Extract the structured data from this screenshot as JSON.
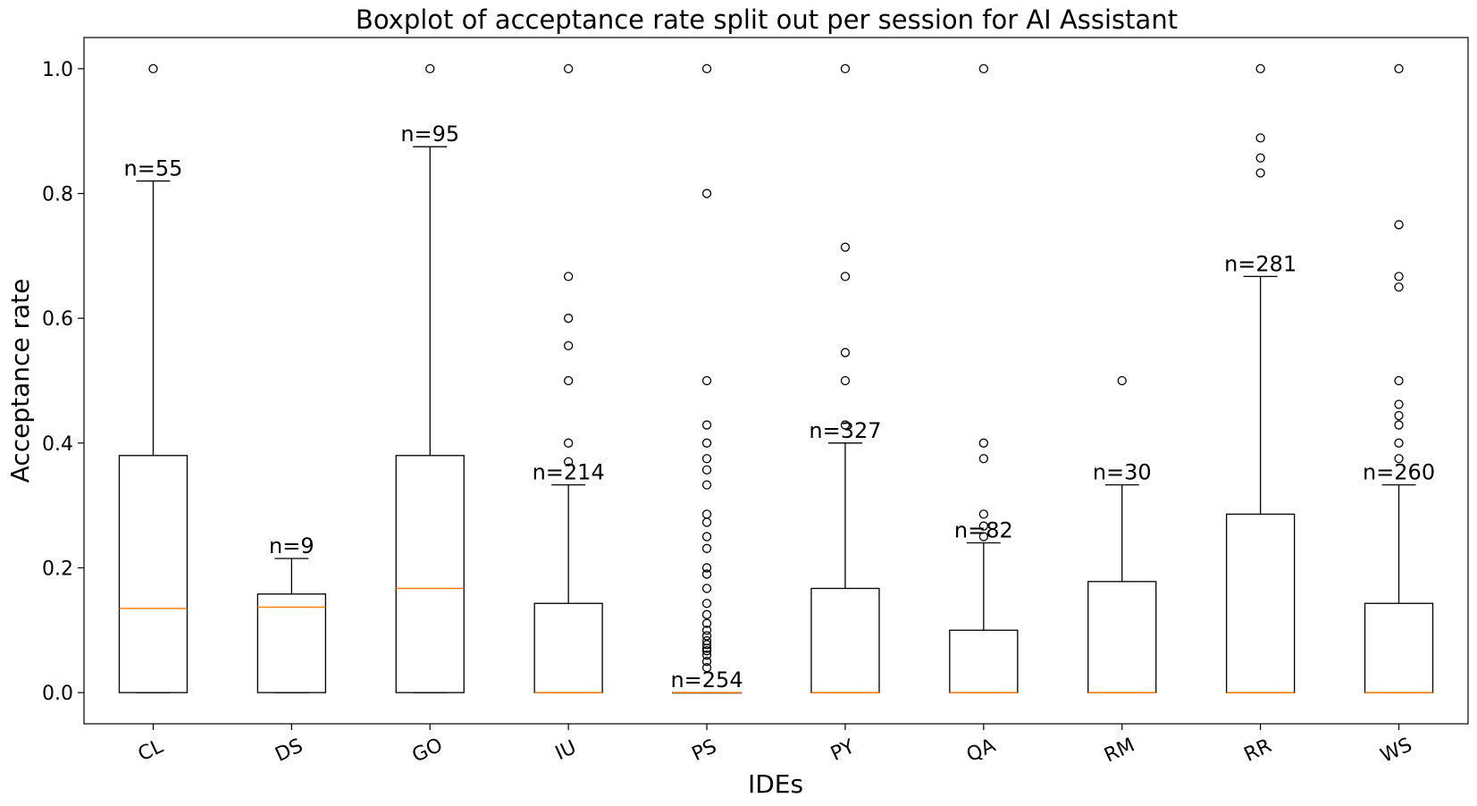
{
  "chart_data": {
    "type": "box",
    "title": "Boxplot of acceptance rate split out per session for AI Assistant",
    "xlabel": "IDEs",
    "ylabel": "Acceptance rate",
    "ylim": [
      -0.05,
      1.05
    ],
    "yticks": [
      0.0,
      0.2,
      0.4,
      0.6,
      0.8,
      1.0
    ],
    "ytick_labels": [
      "0.0",
      "0.2",
      "0.4",
      "0.6",
      "0.8",
      "1.0"
    ],
    "grid": false,
    "colors": {
      "box": "#000000",
      "median": "#ff7f0e"
    },
    "boxes": [
      {
        "category": "CL",
        "n_label": "n=55",
        "min": 0.0,
        "q1": 0.0,
        "median": 0.135,
        "q3": 0.38,
        "max": 0.82,
        "fliers": [
          1.0
        ]
      },
      {
        "category": "DS",
        "n_label": "n=9",
        "min": 0.0,
        "q1": 0.0,
        "median": 0.137,
        "q3": 0.158,
        "max": 0.215,
        "fliers": []
      },
      {
        "category": "GO",
        "n_label": "n=95",
        "min": 0.0,
        "q1": 0.0,
        "median": 0.167,
        "q3": 0.38,
        "max": 0.875,
        "fliers": [
          1.0
        ]
      },
      {
        "category": "IU",
        "n_label": "n=214",
        "min": 0.0,
        "q1": 0.0,
        "median": 0.0,
        "q3": 0.143,
        "max": 0.333,
        "fliers": [
          0.37,
          0.4,
          0.5,
          0.556,
          0.6,
          0.667,
          1.0
        ]
      },
      {
        "category": "PS",
        "n_label": "n=254",
        "min": 0.0,
        "q1": 0.0,
        "median": 0.0,
        "q3": 0.0,
        "max": 0.0,
        "fliers": [
          0.04,
          0.05,
          0.06,
          0.067,
          0.071,
          0.077,
          0.083,
          0.091,
          0.1,
          0.111,
          0.125,
          0.143,
          0.167,
          0.19,
          0.2,
          0.231,
          0.25,
          0.273,
          0.286,
          0.333,
          0.357,
          0.375,
          0.4,
          0.429,
          0.5,
          0.8,
          1.0
        ]
      },
      {
        "category": "PY",
        "n_label": "n=327",
        "min": 0.0,
        "q1": 0.0,
        "median": 0.0,
        "q3": 0.167,
        "max": 0.4,
        "fliers": [
          0.429,
          0.5,
          0.545,
          0.667,
          0.714,
          1.0
        ]
      },
      {
        "category": "QA",
        "n_label": "n=82",
        "min": 0.0,
        "q1": 0.0,
        "median": 0.0,
        "q3": 0.1,
        "max": 0.24,
        "fliers": [
          0.25,
          0.267,
          0.286,
          0.375,
          0.4,
          1.0
        ]
      },
      {
        "category": "RM",
        "n_label": "n=30",
        "min": 0.0,
        "q1": 0.0,
        "median": 0.0,
        "q3": 0.178,
        "max": 0.333,
        "fliers": [
          0.5
        ]
      },
      {
        "category": "RR",
        "n_label": "n=281",
        "min": 0.0,
        "q1": 0.0,
        "median": 0.0,
        "q3": 0.286,
        "max": 0.667,
        "fliers": [
          0.833,
          0.857,
          0.889,
          1.0
        ]
      },
      {
        "category": "WS",
        "n_label": "n=260",
        "min": 0.0,
        "q1": 0.0,
        "median": 0.0,
        "q3": 0.143,
        "max": 0.333,
        "fliers": [
          0.375,
          0.4,
          0.429,
          0.444,
          0.462,
          0.5,
          0.65,
          0.667,
          0.75,
          1.0
        ]
      }
    ]
  }
}
